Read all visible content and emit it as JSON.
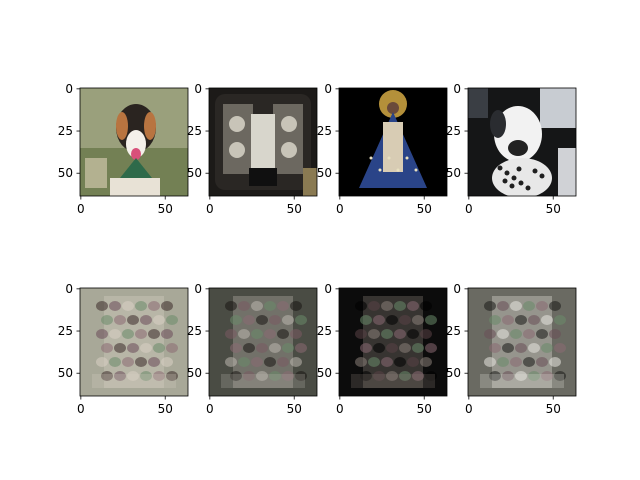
{
  "figure": {
    "rows": 2,
    "cols": 4,
    "panel_extent": [
      0,
      64
    ],
    "x_ticks": [
      "0",
      "50"
    ],
    "y_ticks": [
      "0",
      "25",
      "50"
    ],
    "panels": [
      {
        "row": 0,
        "col": 0,
        "content": "dog-photo",
        "palette": {
          "bg": "#9aa07c",
          "mid": "#d8d0c0",
          "dark": "#2a2420",
          "accent": "#5a6a3a"
        }
      },
      {
        "row": 0,
        "col": 1,
        "content": "camera-bag-photo",
        "palette": {
          "bg": "#1c1a18",
          "mid": "#d6d4cc",
          "dark": "#0a0908",
          "accent": "#8a7a52"
        }
      },
      {
        "row": 0,
        "col": 2,
        "content": "statue-photo",
        "palette": {
          "bg": "#000000",
          "mid": "#2a4488",
          "dark": "#000000",
          "accent": "#c8a040"
        }
      },
      {
        "row": 0,
        "col": 3,
        "content": "dog-car-photo",
        "palette": {
          "bg": "#151617",
          "mid": "#f2f2f2",
          "dark": "#1d1f22",
          "accent": "#5a5e66"
        }
      },
      {
        "row": 1,
        "col": 0,
        "content": "reconstruction",
        "palette": {
          "bg": "#a8a898",
          "mid": "#d8d0c4",
          "dark": "#3a2a2a",
          "accent": "#6a4a5a"
        }
      },
      {
        "row": 1,
        "col": 1,
        "content": "reconstruction",
        "palette": {
          "bg": "#4a4c44",
          "mid": "#bcb6ae",
          "dark": "#1a1614",
          "accent": "#7a5a62"
        }
      },
      {
        "row": 1,
        "col": 2,
        "content": "reconstruction",
        "palette": {
          "bg": "#0c0c0c",
          "mid": "#8a8078",
          "dark": "#000000",
          "accent": "#5a4246"
        }
      },
      {
        "row": 1,
        "col": 3,
        "content": "reconstruction",
        "palette": {
          "bg": "#6a6a62",
          "mid": "#e8e6e0",
          "dark": "#1a1a18",
          "accent": "#6a4e58"
        }
      }
    ]
  }
}
